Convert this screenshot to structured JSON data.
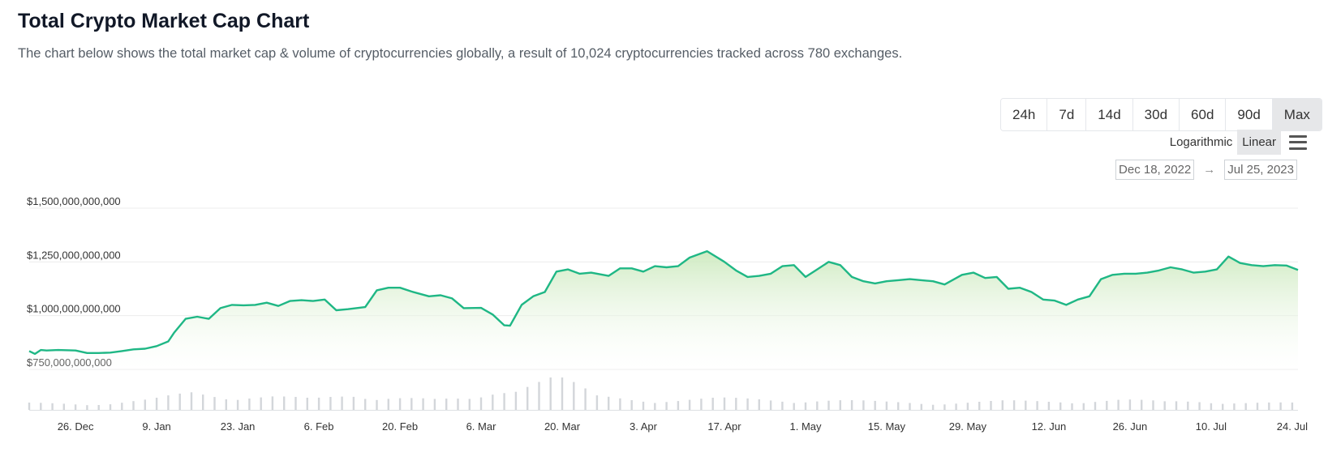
{
  "header": {
    "title": "Total Crypto Market Cap Chart",
    "description": "The chart below shows the total market cap & volume of cryptocurrencies globally, a result of 10,024 cryptocurrencies tracked across 780 exchanges."
  },
  "range_buttons": [
    "24h",
    "7d",
    "14d",
    "30d",
    "60d",
    "90d",
    "Max"
  ],
  "range_selected": "Max",
  "scale": {
    "log_label": "Logarithmic",
    "linear_label": "Linear",
    "selected": "Linear"
  },
  "date_range": {
    "from": "Dec 18, 2022",
    "arrow": "→",
    "to": "Jul 25, 2023"
  },
  "colors": {
    "line": "#1fb785",
    "area": "#d9f0cf",
    "volume": "#d3d6da",
    "grid": "#ececec"
  },
  "chart_data": {
    "type": "area",
    "title": "",
    "xlabel": "",
    "ylabel": "",
    "x_start": "2022-12-18",
    "x_end": "2023-07-25",
    "ylim": [
      750000000000,
      1500000000000
    ],
    "yticks": [
      750000000000,
      1000000000000,
      1250000000000,
      1500000000000
    ],
    "ytick_labels": [
      "$750,000,000,000",
      "$1,000,000,000,000",
      "$1,250,000,000,000",
      "$1,500,000,000,000"
    ],
    "xtick_labels": [
      "26. Dec",
      "9. Jan",
      "23. Jan",
      "6. Feb",
      "20. Feb",
      "6. Mar",
      "20. Mar",
      "3. Apr",
      "17. Apr",
      "1. May",
      "15. May",
      "29. May",
      "12. Jun",
      "26. Jun",
      "10. Jul",
      "24. Jul"
    ],
    "xtick_dates": [
      "2022-12-26",
      "2023-01-09",
      "2023-01-23",
      "2023-02-06",
      "2023-02-20",
      "2023-03-06",
      "2023-03-20",
      "2023-04-03",
      "2023-04-17",
      "2023-05-01",
      "2023-05-15",
      "2023-05-29",
      "2023-06-12",
      "2023-06-26",
      "2023-07-10",
      "2023-07-24"
    ],
    "series": [
      {
        "kind": "market_cap",
        "points": [
          [
            "2022-12-18",
            835
          ],
          [
            "2022-12-19",
            822
          ],
          [
            "2022-12-20",
            840
          ],
          [
            "2022-12-21",
            838
          ],
          [
            "2022-12-23",
            840
          ],
          [
            "2022-12-26",
            838
          ],
          [
            "2022-12-28",
            826
          ],
          [
            "2022-12-30",
            826
          ],
          [
            "2023-01-01",
            828
          ],
          [
            "2023-01-03",
            835
          ],
          [
            "2023-01-05",
            843
          ],
          [
            "2023-01-07",
            846
          ],
          [
            "2023-01-09",
            858
          ],
          [
            "2023-01-11",
            880
          ],
          [
            "2023-01-12",
            920
          ],
          [
            "2023-01-14",
            985
          ],
          [
            "2023-01-16",
            995
          ],
          [
            "2023-01-18",
            985
          ],
          [
            "2023-01-20",
            1035
          ],
          [
            "2023-01-22",
            1050
          ],
          [
            "2023-01-24",
            1048
          ],
          [
            "2023-01-26",
            1050
          ],
          [
            "2023-01-28",
            1060
          ],
          [
            "2023-01-30",
            1045
          ],
          [
            "2023-02-01",
            1068
          ],
          [
            "2023-02-03",
            1072
          ],
          [
            "2023-02-05",
            1068
          ],
          [
            "2023-02-07",
            1075
          ],
          [
            "2023-02-09",
            1025
          ],
          [
            "2023-02-11",
            1030
          ],
          [
            "2023-02-14",
            1040
          ],
          [
            "2023-02-16",
            1118
          ],
          [
            "2023-02-18",
            1130
          ],
          [
            "2023-02-20",
            1130
          ],
          [
            "2023-02-22",
            1112
          ],
          [
            "2023-02-25",
            1090
          ],
          [
            "2023-02-27",
            1095
          ],
          [
            "2023-03-01",
            1080
          ],
          [
            "2023-03-03",
            1035
          ],
          [
            "2023-03-06",
            1036
          ],
          [
            "2023-03-08",
            1005
          ],
          [
            "2023-03-10",
            955
          ],
          [
            "2023-03-11",
            953
          ],
          [
            "2023-03-13",
            1050
          ],
          [
            "2023-03-15",
            1090
          ],
          [
            "2023-03-17",
            1110
          ],
          [
            "2023-03-19",
            1205
          ],
          [
            "2023-03-21",
            1215
          ],
          [
            "2023-03-23",
            1195
          ],
          [
            "2023-03-25",
            1200
          ],
          [
            "2023-03-28",
            1185
          ],
          [
            "2023-03-30",
            1220
          ],
          [
            "2023-04-01",
            1220
          ],
          [
            "2023-04-03",
            1205
          ],
          [
            "2023-04-05",
            1230
          ],
          [
            "2023-04-07",
            1225
          ],
          [
            "2023-04-09",
            1230
          ],
          [
            "2023-04-11",
            1270
          ],
          [
            "2023-04-13",
            1290
          ],
          [
            "2023-04-14",
            1300
          ],
          [
            "2023-04-17",
            1250
          ],
          [
            "2023-04-19",
            1210
          ],
          [
            "2023-04-21",
            1180
          ],
          [
            "2023-04-23",
            1185
          ],
          [
            "2023-04-25",
            1195
          ],
          [
            "2023-04-27",
            1230
          ],
          [
            "2023-04-29",
            1235
          ],
          [
            "2023-05-01",
            1180
          ],
          [
            "2023-05-03",
            1215
          ],
          [
            "2023-05-05",
            1250
          ],
          [
            "2023-05-07",
            1235
          ],
          [
            "2023-05-09",
            1180
          ],
          [
            "2023-05-11",
            1160
          ],
          [
            "2023-05-13",
            1150
          ],
          [
            "2023-05-15",
            1160
          ],
          [
            "2023-05-17",
            1165
          ],
          [
            "2023-05-19",
            1170
          ],
          [
            "2023-05-21",
            1165
          ],
          [
            "2023-05-23",
            1160
          ],
          [
            "2023-05-25",
            1145
          ],
          [
            "2023-05-28",
            1190
          ],
          [
            "2023-05-30",
            1200
          ],
          [
            "2023-06-01",
            1175
          ],
          [
            "2023-06-03",
            1180
          ],
          [
            "2023-06-05",
            1125
          ],
          [
            "2023-06-07",
            1130
          ],
          [
            "2023-06-09",
            1110
          ],
          [
            "2023-06-11",
            1075
          ],
          [
            "2023-06-13",
            1070
          ],
          [
            "2023-06-15",
            1050
          ],
          [
            "2023-06-17",
            1075
          ],
          [
            "2023-06-19",
            1090
          ],
          [
            "2023-06-21",
            1170
          ],
          [
            "2023-06-23",
            1190
          ],
          [
            "2023-06-25",
            1195
          ],
          [
            "2023-06-27",
            1195
          ],
          [
            "2023-06-29",
            1200
          ],
          [
            "2023-07-01",
            1210
          ],
          [
            "2023-07-03",
            1225
          ],
          [
            "2023-07-05",
            1215
          ],
          [
            "2023-07-07",
            1200
          ],
          [
            "2023-07-09",
            1205
          ],
          [
            "2023-07-11",
            1215
          ],
          [
            "2023-07-13",
            1275
          ],
          [
            "2023-07-15",
            1245
          ],
          [
            "2023-07-17",
            1235
          ],
          [
            "2023-07-19",
            1230
          ],
          [
            "2023-07-21",
            1235
          ],
          [
            "2023-07-23",
            1233
          ],
          [
            "2023-07-25",
            1213
          ]
        ],
        "unit": "billion USD"
      },
      {
        "kind": "volume",
        "points": [
          [
            "2022-12-18",
            1
          ],
          [
            "2022-12-25",
            1
          ],
          [
            "2023-01-01",
            1
          ],
          [
            "2023-01-08",
            1.5
          ],
          [
            "2023-01-15",
            2.6
          ],
          [
            "2023-01-22",
            2.1
          ],
          [
            "2023-01-29",
            2
          ],
          [
            "2023-02-05",
            1.6
          ],
          [
            "2023-02-12",
            2.3
          ],
          [
            "2023-02-19",
            2
          ],
          [
            "2023-02-26",
            1.5
          ],
          [
            "2023-03-05",
            1.6
          ],
          [
            "2023-03-12",
            4
          ],
          [
            "2023-03-19",
            5.2
          ],
          [
            "2023-03-26",
            2
          ],
          [
            "2023-04-02",
            1.6
          ],
          [
            "2023-04-09",
            1.5
          ],
          [
            "2023-04-16",
            1.7
          ],
          [
            "2023-04-23",
            1.6
          ],
          [
            "2023-04-30",
            1.5
          ],
          [
            "2023-05-07",
            1.4
          ],
          [
            "2023-05-14",
            1.2
          ],
          [
            "2023-05-21",
            1.1
          ],
          [
            "2023-05-28",
            1.1
          ],
          [
            "2023-06-04",
            1.3
          ],
          [
            "2023-06-11",
            1.3
          ],
          [
            "2023-06-18",
            1.4
          ],
          [
            "2023-06-25",
            1.5
          ],
          [
            "2023-07-02",
            1.2
          ],
          [
            "2023-07-09",
            1.4
          ],
          [
            "2023-07-16",
            1.1
          ],
          [
            "2023-07-23",
            1
          ]
        ],
        "unit": "relative"
      }
    ]
  }
}
